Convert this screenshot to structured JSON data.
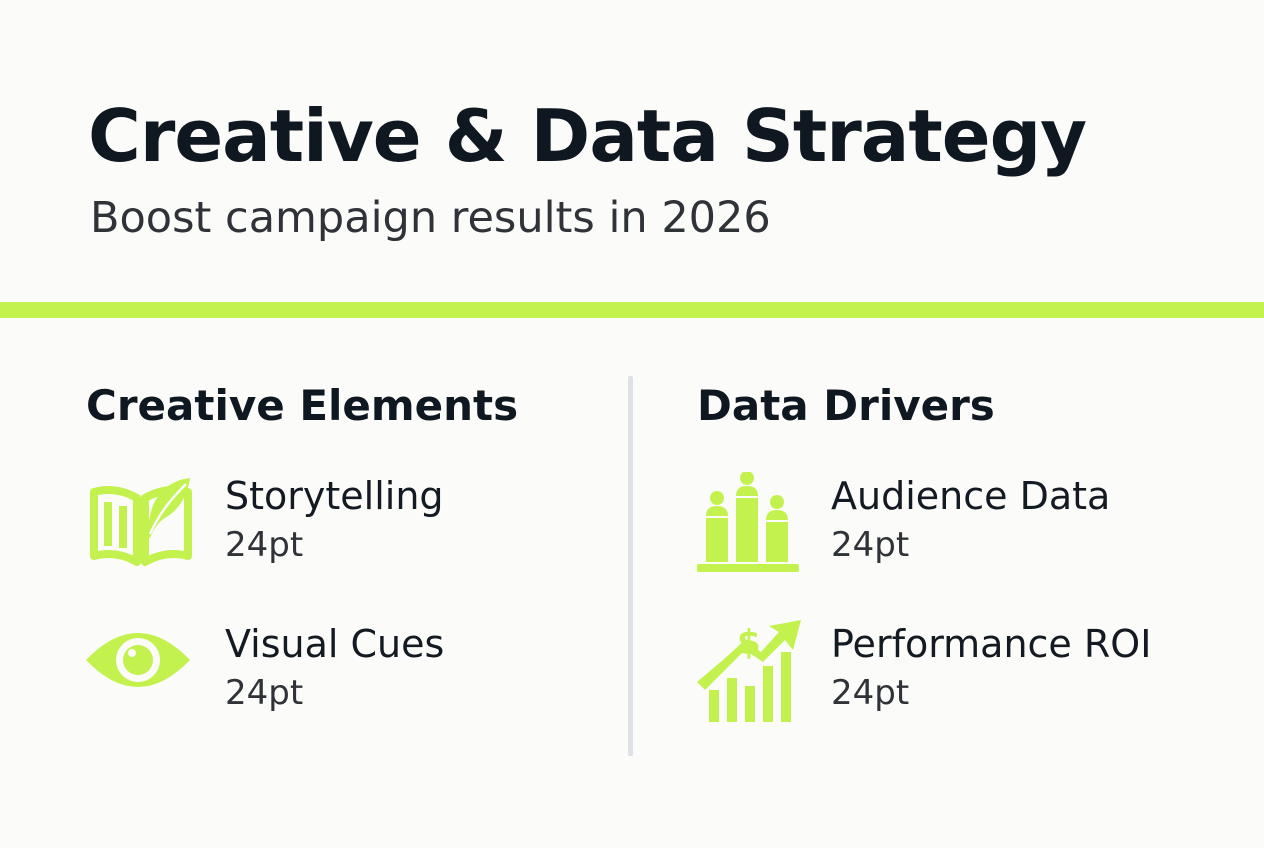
{
  "header": {
    "title": "Creative & Data Strategy",
    "subtitle": "Boost campaign results in 2026"
  },
  "colors": {
    "accent": "#c3f24f",
    "text": "#0f1720",
    "divider": "#dde1e6"
  },
  "columns": [
    {
      "heading": "Creative Elements",
      "items": [
        {
          "label": "Storytelling",
          "size": "24pt",
          "icon": "open-book-quill-icon"
        },
        {
          "label": "Visual Cues",
          "size": "24pt",
          "icon": "eye-icon"
        }
      ]
    },
    {
      "heading": "Data Drivers",
      "items": [
        {
          "label": "Audience Data",
          "size": "24pt",
          "icon": "audience-bars-icon"
        },
        {
          "label": "Performance ROI",
          "size": "24pt",
          "icon": "growth-dollar-chart-icon"
        }
      ]
    }
  ]
}
